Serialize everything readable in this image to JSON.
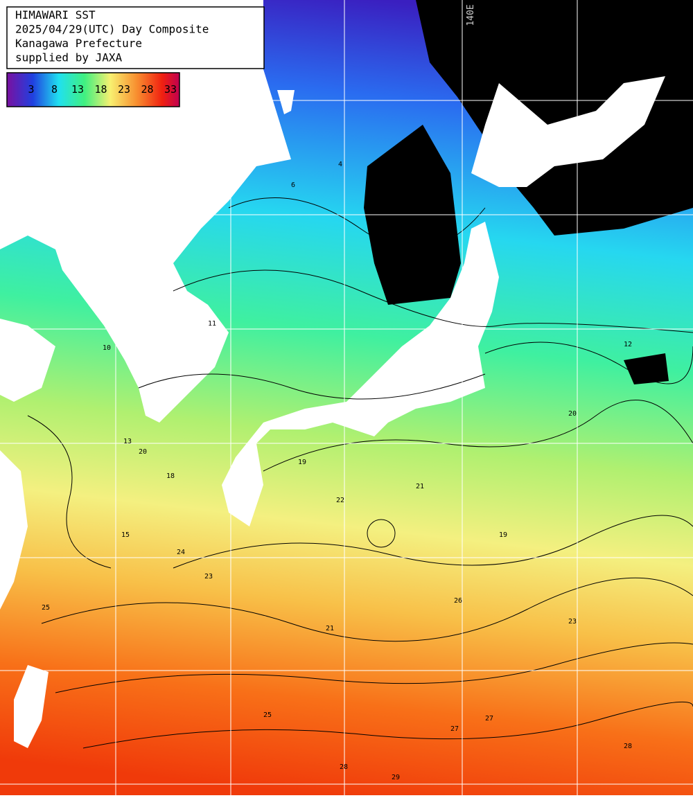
{
  "header": {
    "lines": [
      "HIMAWARI SST",
      "2025/04/29(UTC) Day Composite",
      "Kanagawa Prefecture",
      "supplied by JAXA"
    ]
  },
  "colorbar": {
    "labels": [
      3,
      8,
      13,
      18,
      23,
      28,
      33
    ]
  },
  "map": {
    "longitude_label": "140E",
    "contour_labels": [
      4,
      6,
      10,
      11,
      12,
      13,
      15,
      18,
      19,
      20,
      21,
      22,
      23,
      24,
      25,
      26,
      27,
      28,
      29,
      19,
      20,
      21,
      23,
      25,
      27,
      28
    ]
  }
}
